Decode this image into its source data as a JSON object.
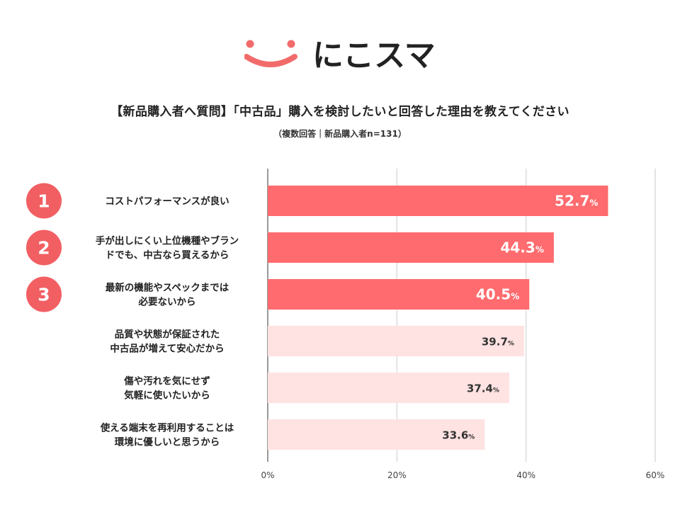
{
  "brand": {
    "name": "にこスマ",
    "color": "#f26b6b"
  },
  "header": {
    "title": "【新品購入者へ質問】「中古品」購入を検討したいと回答した理由を教えてください",
    "subtitle": "（複数回答｜新品購入者n=131）"
  },
  "colors": {
    "top3": "#ff6b6e",
    "others": "#ffe2e2",
    "badge": "#f25f63",
    "grid": "#dcdcdc",
    "axis": "#9a9a9a"
  },
  "chart_data": {
    "type": "bar",
    "orientation": "horizontal",
    "categories": [
      [
        "コストパフォーマンスが良い"
      ],
      [
        "手が出しにくい上位機種やブラン",
        "ドでも、中古なら買えるから"
      ],
      [
        "最新の機能やスペックまでは",
        "必要ないから"
      ],
      [
        "品質や状態が保証された",
        "中古品が増えて安心だから"
      ],
      [
        "傷や汚れを気にせず",
        "気軽に使いたいから"
      ],
      [
        "使える端末を再利用することは",
        "環境に優しいと思うから"
      ]
    ],
    "values": [
      52.7,
      44.3,
      40.5,
      39.7,
      37.4,
      33.6
    ],
    "value_labels": [
      "52.7",
      "44.3",
      "40.5",
      "39.7",
      "37.4",
      "33.6"
    ],
    "value_unit": "%",
    "ranks": [
      "1",
      "2",
      "3"
    ],
    "xlim": [
      0,
      60
    ],
    "x_ticks": [
      0,
      20,
      40,
      60
    ],
    "x_tick_labels": [
      "0%",
      "20%",
      "40%",
      "60%"
    ],
    "grid": true
  }
}
